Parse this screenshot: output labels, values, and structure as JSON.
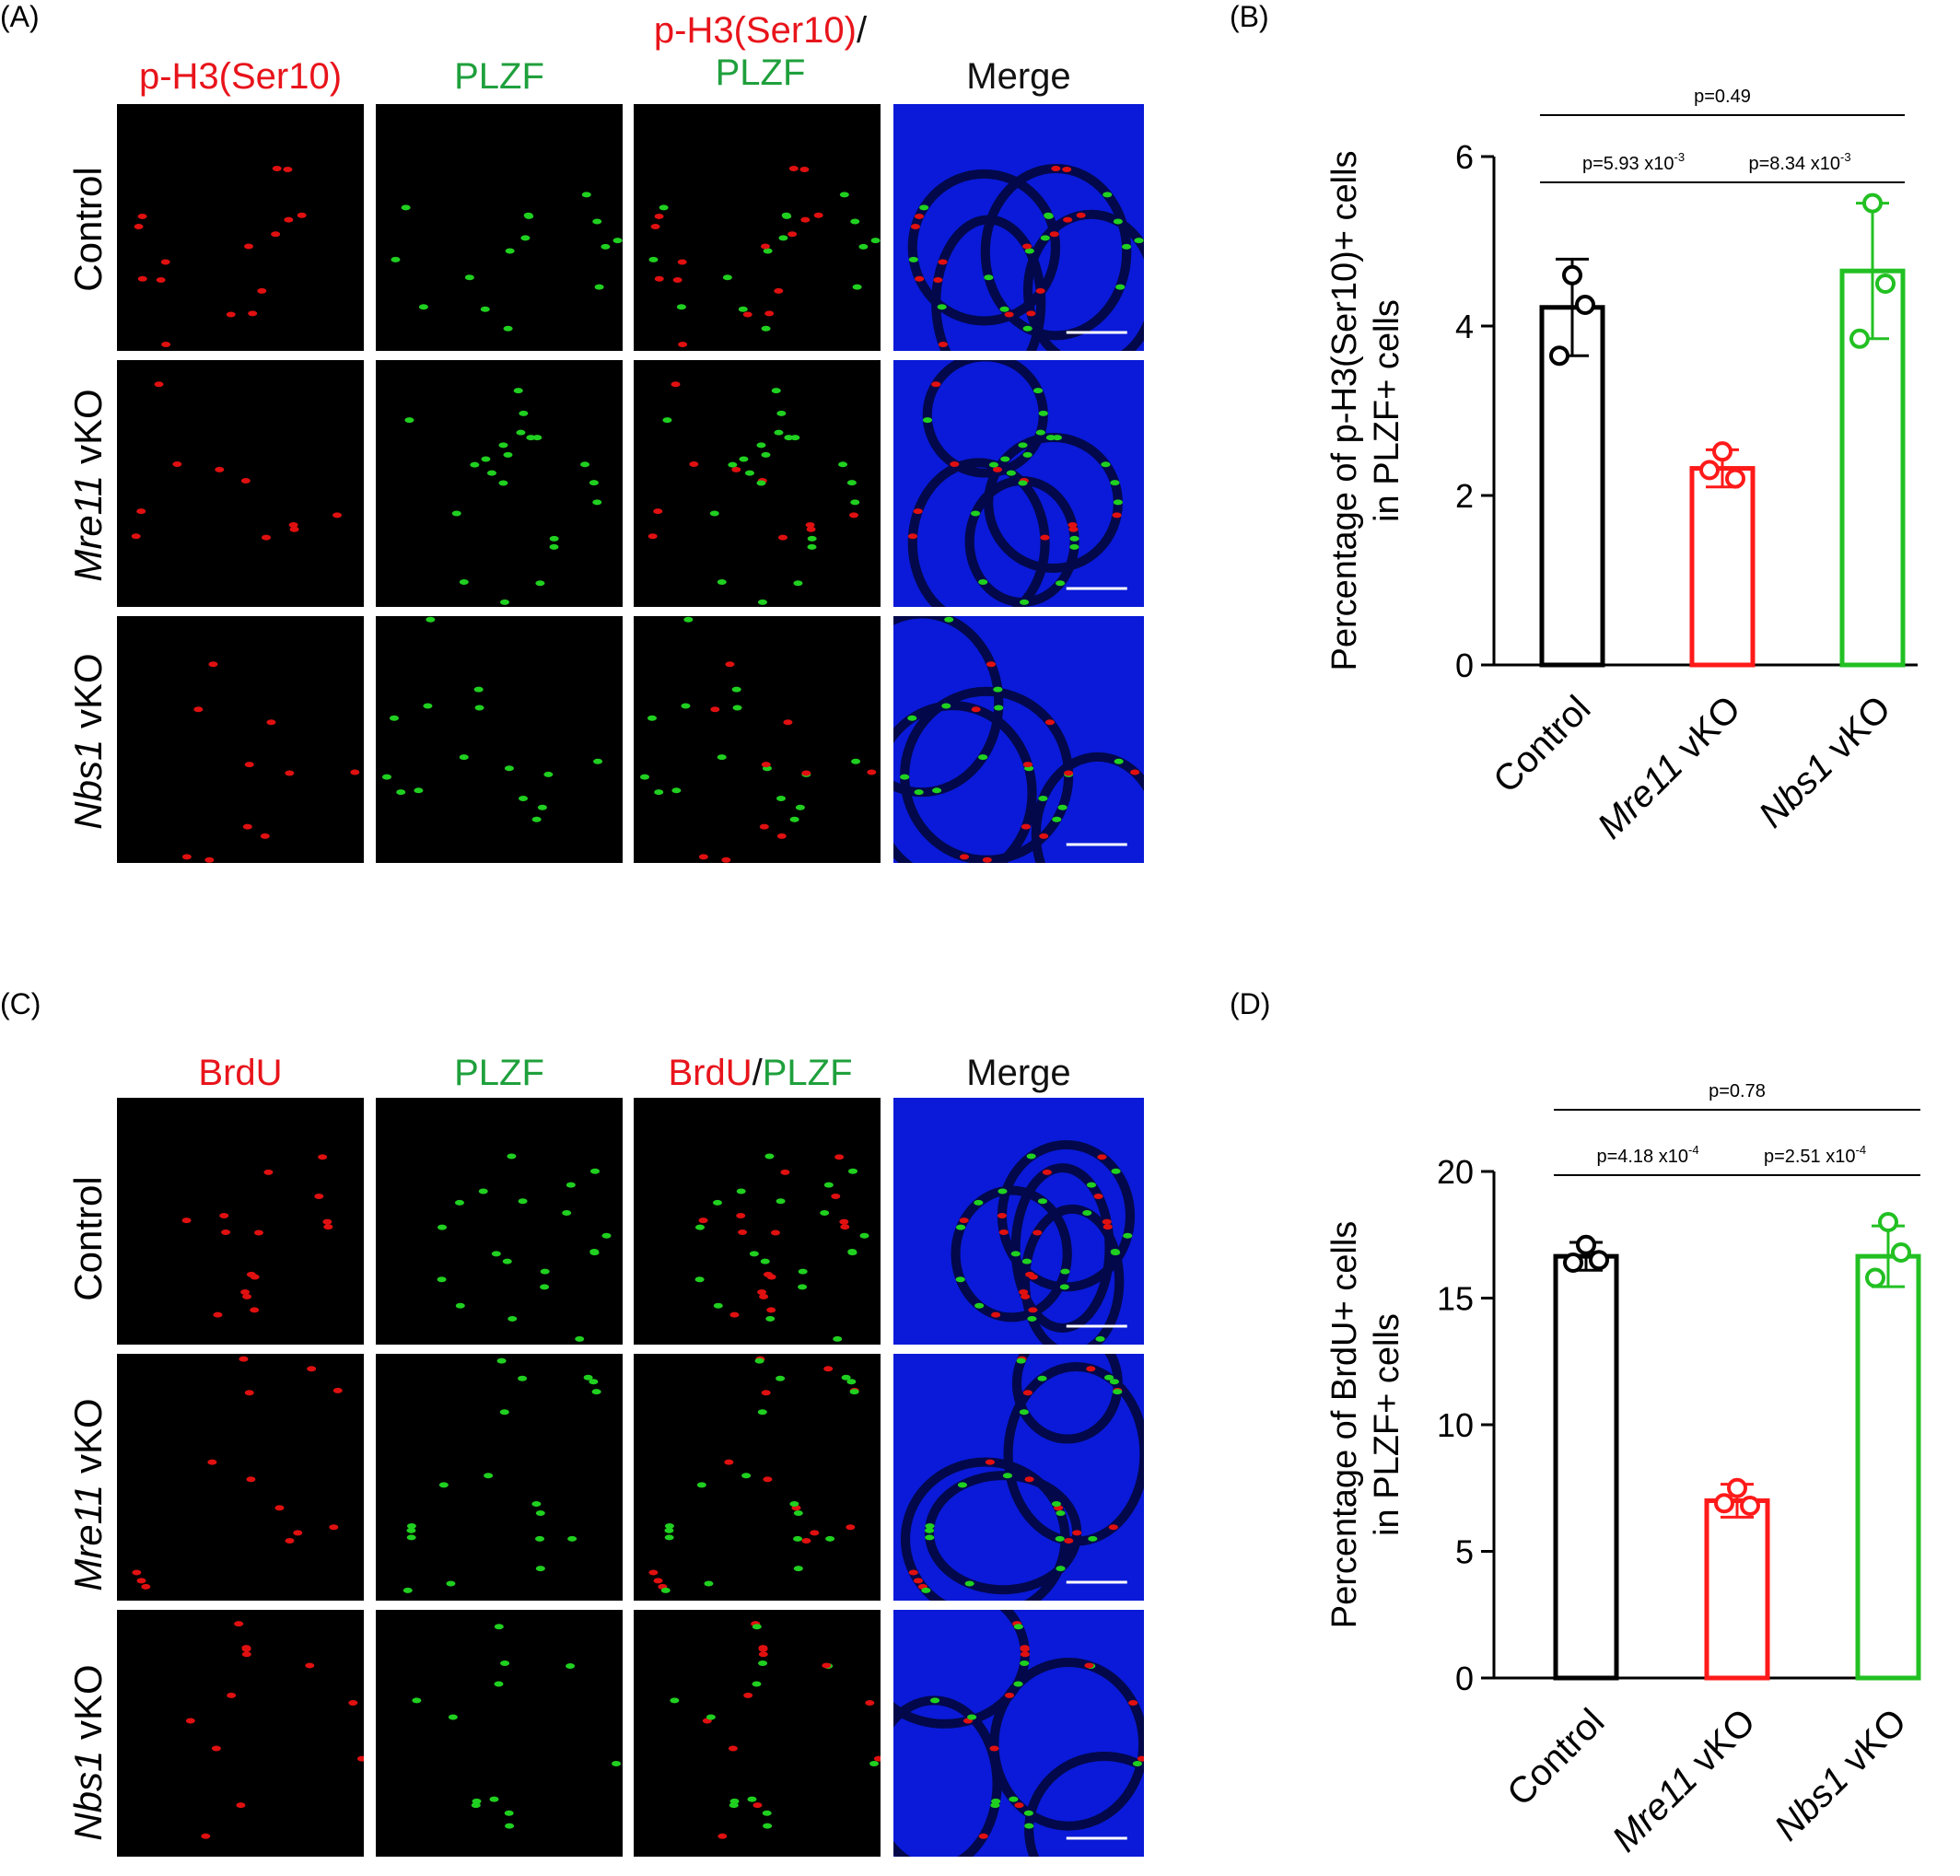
{
  "panels": {
    "A": {
      "letter": "(A)",
      "columns": [
        {
          "text": "p-H3(Ser10)",
          "color": "red"
        },
        {
          "text": "PLZF",
          "color": "green"
        },
        {
          "text_red": "p-H3(Ser10)",
          "slash": "/",
          "text_green": "PLZF"
        },
        {
          "text": "Merge",
          "color": "black"
        }
      ],
      "rows": [
        {
          "gene": "",
          "suffix": "Control"
        },
        {
          "gene": "Mre11",
          "suffix": " vKO"
        },
        {
          "gene": "Nbs1",
          "suffix": " vKO"
        }
      ]
    },
    "B": {
      "letter": "(B)"
    },
    "C": {
      "letter": "(C)",
      "columns": [
        {
          "text": "BrdU",
          "color": "red"
        },
        {
          "text": "PLZF",
          "color": "green"
        },
        {
          "text_red": "BrdU",
          "slash": "/",
          "text_green": "PLZF"
        },
        {
          "text": "Merge",
          "color": "black"
        }
      ],
      "rows": [
        {
          "gene": "",
          "suffix": "Control"
        },
        {
          "gene": "Mre11",
          "suffix": " vKO"
        },
        {
          "gene": "Nbs1",
          "suffix": " vKO"
        }
      ]
    },
    "D": {
      "letter": "(D)"
    }
  },
  "colors": {
    "control": "#000000",
    "mre11": "#ff1a1a",
    "nbs1": "#22c022"
  },
  "chart_data": [
    {
      "type": "bar",
      "panel": "B",
      "ylabel_line1": "Percentage of p-H3(Ser10)+ cells",
      "ylabel_line2": "in PLZF+ cells",
      "ylim": [
        0,
        6
      ],
      "yticks": [
        "0",
        "2",
        "4",
        "6"
      ],
      "categories": [
        {
          "gene": "",
          "rest": "Control"
        },
        {
          "gene": "Mre11",
          "rest": " vKO"
        },
        {
          "gene": "Nbs1",
          "rest": " vKO"
        }
      ],
      "means": [
        4.22,
        2.32,
        4.65
      ],
      "sd": [
        0.57,
        0.22,
        0.8
      ],
      "points": [
        [
          4.6,
          3.65,
          4.25
        ],
        [
          2.52,
          2.3,
          2.2
        ],
        [
          5.45,
          3.85,
          4.5
        ]
      ],
      "comparisons": [
        {
          "pair": [
            0,
            1
          ],
          "label": "p=5.93 x10",
          "sup": "-3"
        },
        {
          "pair": [
            1,
            2
          ],
          "label": "p=8.34 x10",
          "sup": "-3"
        },
        {
          "pair": [
            0,
            2
          ],
          "label": "p=0.49",
          "sup": ""
        }
      ]
    },
    {
      "type": "bar",
      "panel": "D",
      "ylabel_line1": "Percentage of BrdU+ cells",
      "ylabel_line2": "in PLZF+ cells",
      "ylim": [
        0,
        20
      ],
      "yticks": [
        "0",
        "5",
        "10",
        "15",
        "20"
      ],
      "categories": [
        {
          "gene": "",
          "rest": "Control"
        },
        {
          "gene": "Mre11",
          "rest": " vKO"
        },
        {
          "gene": "Nbs1",
          "rest": " vKO"
        }
      ],
      "means": [
        16.65,
        7.0,
        16.65
      ],
      "sd": [
        0.55,
        0.65,
        1.2
      ],
      "points": [
        [
          17.1,
          16.4,
          16.5
        ],
        [
          7.5,
          6.9,
          6.8
        ],
        [
          18.0,
          15.8,
          16.8
        ]
      ],
      "comparisons": [
        {
          "pair": [
            0,
            1
          ],
          "label": "p=4.18 x10",
          "sup": "-4"
        },
        {
          "pair": [
            1,
            2
          ],
          "label": "p=2.51 x10",
          "sup": "-4"
        },
        {
          "pair": [
            0,
            2
          ],
          "label": "p=0.78",
          "sup": ""
        }
      ]
    }
  ]
}
